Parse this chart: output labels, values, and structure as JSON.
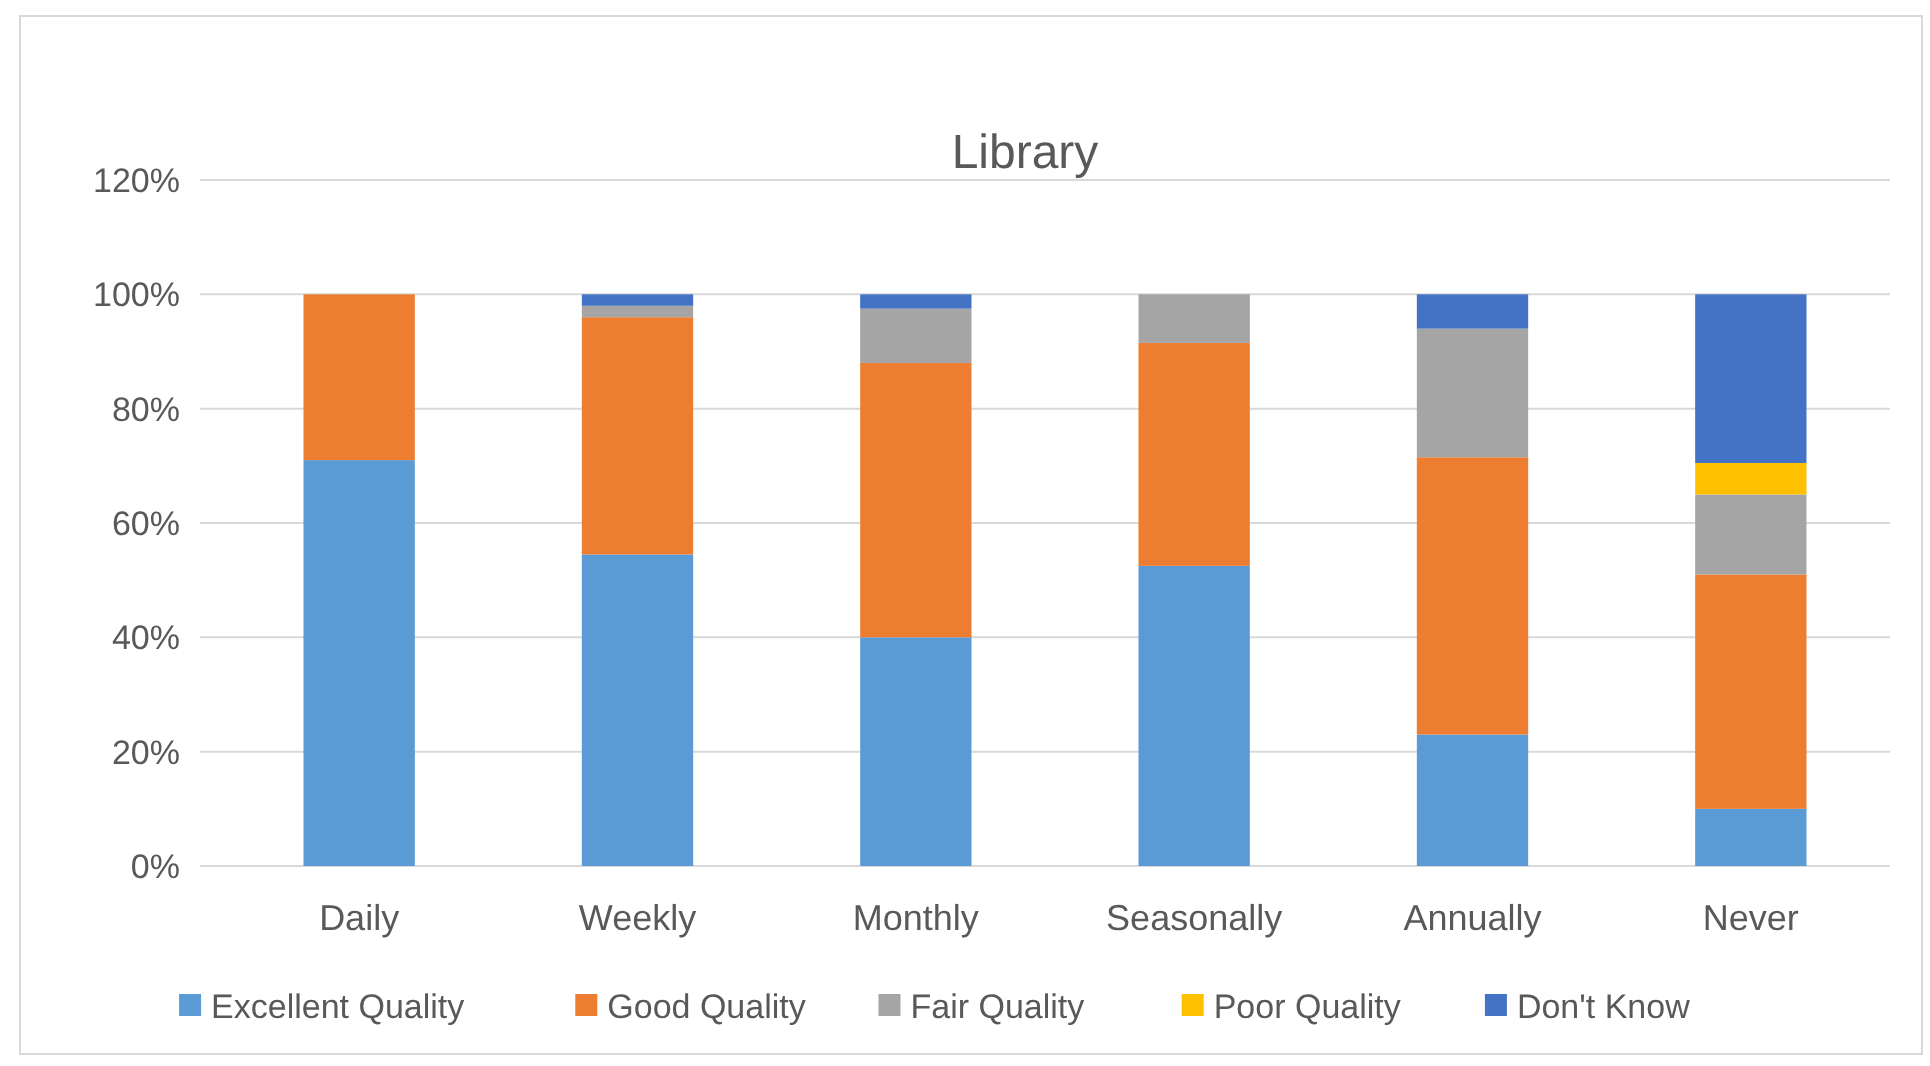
{
  "chart_data": {
    "type": "bar",
    "title": "Library",
    "stacked": true,
    "categories": [
      "Daily",
      "Weekly",
      "Monthly",
      "Seasonally",
      "Annually",
      "Never"
    ],
    "series": [
      {
        "name": "Excellent Quality",
        "color": "#5b9bd5",
        "values": [
          71,
          54.5,
          40,
          52.5,
          23,
          10
        ]
      },
      {
        "name": "Good Quality",
        "color": "#ed7d31",
        "values": [
          29,
          41.5,
          48,
          39,
          48.5,
          41
        ]
      },
      {
        "name": "Fair Quality",
        "color": "#a5a5a5",
        "values": [
          0,
          2,
          9.5,
          8.5,
          22.5,
          14
        ]
      },
      {
        "name": "Poor Quality",
        "color": "#ffc000",
        "values": [
          0,
          0,
          0,
          0,
          0,
          5.5
        ]
      },
      {
        "name": "Don't Know",
        "color": "#4472c4",
        "values": [
          0,
          2,
          2.5,
          0,
          6,
          29.5
        ]
      }
    ],
    "ylim": [
      0,
      120
    ],
    "yticks": [
      {
        "value": 0,
        "label": "0%"
      },
      {
        "value": 20,
        "label": "20%"
      },
      {
        "value": 40,
        "label": "40%"
      },
      {
        "value": 60,
        "label": "60%"
      },
      {
        "value": 80,
        "label": "80%"
      },
      {
        "value": 100,
        "label": "100%"
      },
      {
        "value": 120,
        "label": "120%"
      }
    ],
    "grid": "y",
    "legend": "bottom"
  }
}
